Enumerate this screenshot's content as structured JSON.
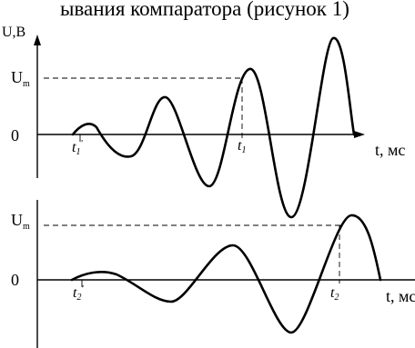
{
  "caption": "ывания компаратора (рисунок 1)",
  "top_plot": {
    "y_axis_label": "U,В",
    "level_label": "U",
    "level_sub": "m",
    "zero_label": "0",
    "t_prime_label": "t",
    "t_prime_sub": "1",
    "t_prime_mark": "'",
    "t_cross_label": "t",
    "t_cross_sub": "1",
    "x_axis_label": "t, мс"
  },
  "bottom_plot": {
    "level_label": "U",
    "level_sub": "m",
    "zero_label": "0",
    "t_prime_label": "t",
    "t_prime_sub": "2",
    "t_prime_mark": "'",
    "t_cross_label": "t",
    "t_cross_sub": "2",
    "x_axis_label": "t, мс"
  }
}
